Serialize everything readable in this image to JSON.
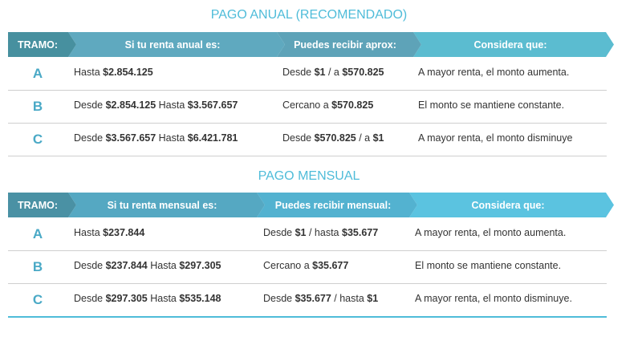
{
  "sections": [
    {
      "title": "PAGO ANUAL (RECOMENDADO)",
      "header": [
        "TRAMO:",
        "Si tu renta anual es:",
        "Puedes recibir aprox:",
        "Considera que:"
      ],
      "rows": [
        {
          "tramo": "A",
          "cells": [
            [
              "Hasta ",
              "$2.854.125"
            ],
            [
              "Desde ",
              "$1",
              " / a ",
              "$570.825"
            ],
            [
              "A mayor renta, el monto aumenta."
            ]
          ]
        },
        {
          "tramo": "B",
          "cells": [
            [
              "Desde ",
              "$2.854.125",
              " Hasta ",
              "$3.567.657"
            ],
            [
              "Cercano a ",
              "$570.825"
            ],
            [
              "El monto se mantiene constante."
            ]
          ]
        },
        {
          "tramo": "C",
          "cells": [
            [
              "Desde ",
              "$3.567.657",
              " Hasta ",
              "$6.421.781"
            ],
            [
              "Desde ",
              "$570.825",
              " / a ",
              "$1"
            ],
            [
              "A mayor renta, el monto disminuye"
            ]
          ]
        }
      ]
    },
    {
      "title": "PAGO MENSUAL",
      "header": [
        "TRAMO:",
        "Si tu renta mensual es:",
        "Puedes recibir mensual:",
        "Considera que:"
      ],
      "rows": [
        {
          "tramo": "A",
          "cells": [
            [
              "Hasta ",
              "$237.844"
            ],
            [
              "Desde ",
              "$1",
              " / hasta ",
              "$35.677"
            ],
            [
              "A mayor renta, el monto aumenta."
            ]
          ]
        },
        {
          "tramo": "B",
          "cells": [
            [
              "Desde ",
              "$237.844",
              " Hasta ",
              "$297.305"
            ],
            [
              "Cercano a ",
              "$35.677"
            ],
            [
              "El monto se mantiene constante."
            ]
          ]
        },
        {
          "tramo": "C",
          "cells": [
            [
              "Desde ",
              "$297.305",
              " Hasta ",
              "$535.148"
            ],
            [
              "Desde ",
              "$35.677",
              " / hasta ",
              "$1"
            ],
            [
              "A mayor renta, el monto disminuye."
            ]
          ]
        }
      ]
    }
  ]
}
